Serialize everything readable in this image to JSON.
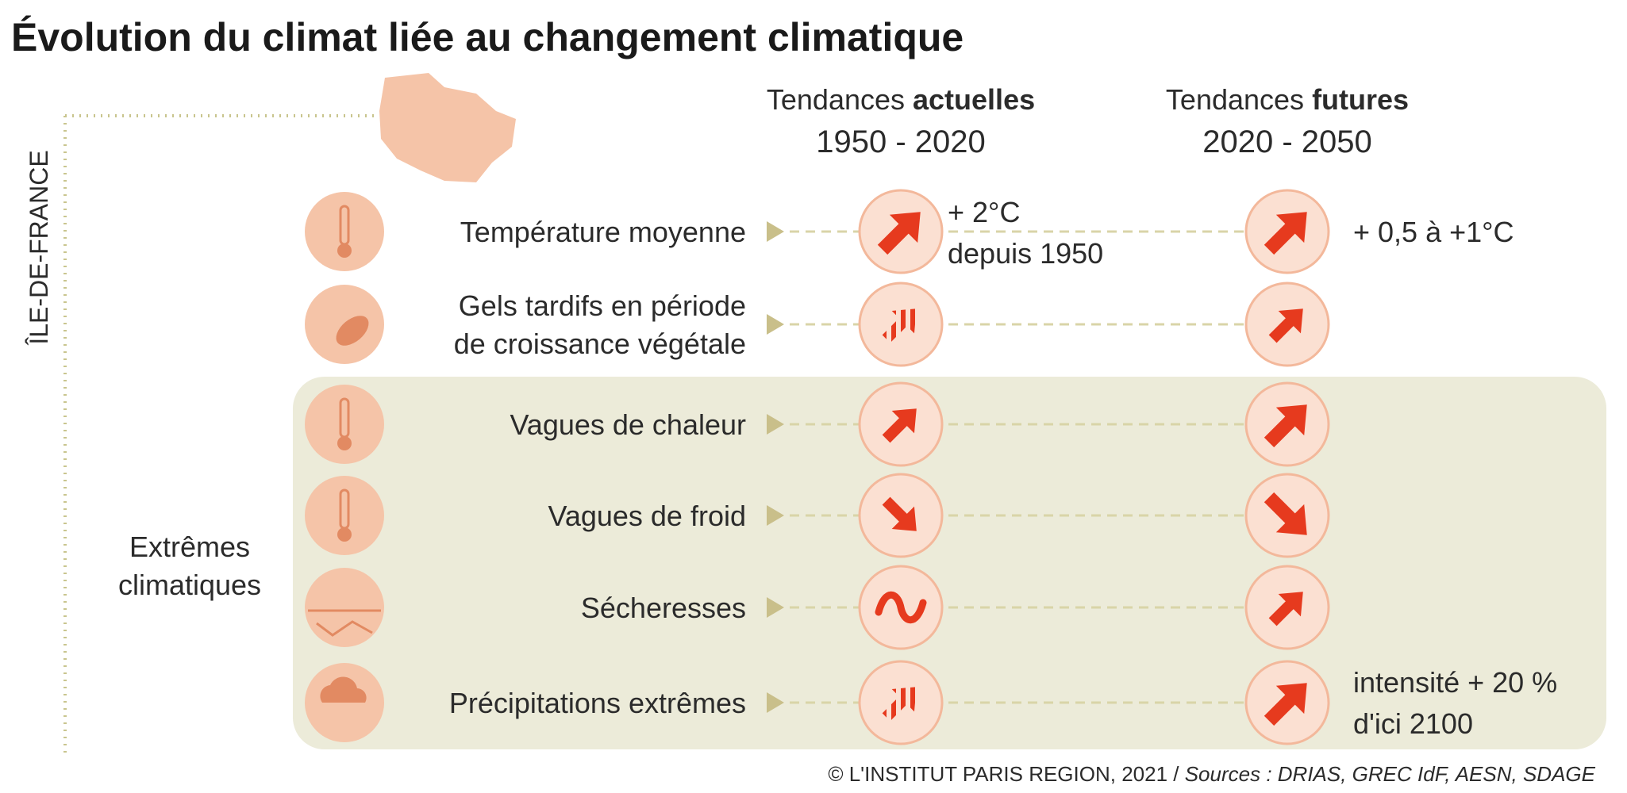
{
  "title": "Évolution du climat liée au changement climatique",
  "region": "ÎLE-DE-FRANCE",
  "columns": [
    {
      "prefix": "Tendances ",
      "emphasis": "actuelles",
      "period": "1950 - 2020"
    },
    {
      "prefix": "Tendances ",
      "emphasis": "futures",
      "period": "2020 - 2050"
    }
  ],
  "group": {
    "lines": [
      "Extrêmes",
      "climatiques"
    ]
  },
  "rows": [
    {
      "label": [
        "Température moyenne"
      ],
      "current_note": [
        "+ 2°C",
        "depuis 1950"
      ],
      "future_note": [
        "+ 0,5 à +1°C"
      ]
    },
    {
      "label": [
        "Gels tardifs en période",
        "de croissance végétale"
      ]
    },
    {
      "label": [
        "Vagues de chaleur"
      ]
    },
    {
      "label": [
        "Vagues de froid"
      ]
    },
    {
      "label": [
        "Sécheresses"
      ]
    },
    {
      "label": [
        "Précipitations extrêmes"
      ],
      "future_note": [
        "intensité + 20 %",
        "d'ici 2100"
      ]
    }
  ],
  "source": {
    "text": "© L'INSTITUT PARIS REGION, 2021 / ",
    "italic": "Sources : DRIAS, GREC IdF, AESN, SDAGE"
  }
}
